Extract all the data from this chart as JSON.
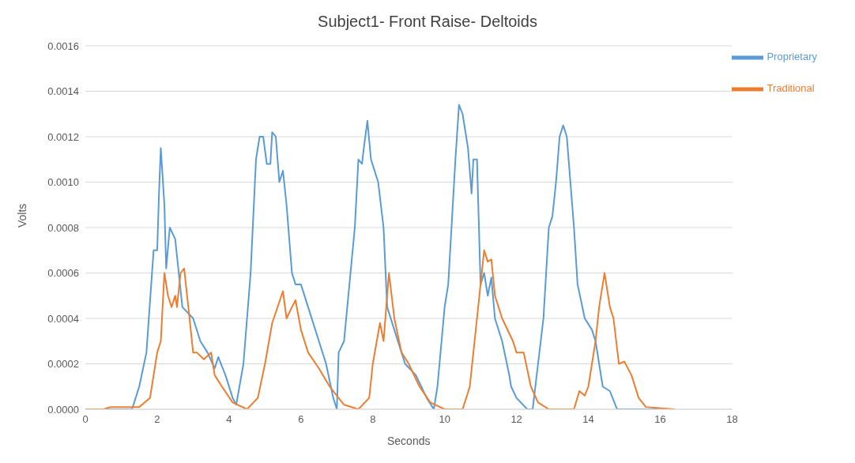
{
  "chart_data": {
    "type": "line",
    "title": "Subject1- Front Raise- Deltoids",
    "xlabel": "Seconds",
    "ylabel": "Volts",
    "xlim": [
      0,
      18
    ],
    "xticks": [
      0,
      2,
      4,
      6,
      8,
      10,
      12,
      14,
      16,
      18
    ],
    "ylim": [
      0,
      0.0016
    ],
    "yticks": [
      {
        "value": 0,
        "label": "0.0000"
      },
      {
        "value": 0.0002,
        "label": "0.0002"
      },
      {
        "value": 0.0004,
        "label": "0.0004"
      },
      {
        "value": 0.0006,
        "label": "0.0006"
      },
      {
        "value": 0.0008,
        "label": "0.0008"
      },
      {
        "value": 0.001,
        "label": "0.0010"
      },
      {
        "value": 0.0012,
        "label": "0.0012"
      },
      {
        "value": 0.0014,
        "label": "0.0014"
      },
      {
        "value": 0.0016,
        "label": "0.0016"
      }
    ],
    "grid": "y",
    "legend": "top right",
    "marker": "none",
    "line_style": "solid",
    "series": [
      {
        "name": "Proprietary",
        "color": "#5b9bd5",
        "x": [
          0,
          1.3,
          1.5,
          1.7,
          1.9,
          2.0,
          2.05,
          2.1,
          2.2,
          2.25,
          2.35,
          2.5,
          2.6,
          2.7,
          3.0,
          3.2,
          3.4,
          3.6,
          3.7,
          3.9,
          4.1,
          4.2,
          4.4,
          4.6,
          4.75,
          4.85,
          4.95,
          5.05,
          5.15,
          5.2,
          5.3,
          5.4,
          5.5,
          5.6,
          5.75,
          5.85,
          6.0,
          6.2,
          6.5,
          6.7,
          6.9,
          7.0,
          7.05,
          7.2,
          7.5,
          7.6,
          7.7,
          7.75,
          7.85,
          7.95,
          8.05,
          8.15,
          8.3,
          8.4,
          8.6,
          8.9,
          9.2,
          9.5,
          9.7,
          9.8,
          10.0,
          10.1,
          10.3,
          10.4,
          10.5,
          10.65,
          10.75,
          10.8,
          10.9,
          11.0,
          11.1,
          11.2,
          11.3,
          11.4,
          11.6,
          11.8,
          11.85,
          12.0,
          12.3,
          12.45,
          12.6,
          12.75,
          12.9,
          13.0,
          13.1,
          13.2,
          13.3,
          13.4,
          13.6,
          13.7,
          13.9,
          14.1,
          14.2,
          14.4,
          14.6,
          14.8,
          16.4
        ],
        "values": [
          0,
          0,
          0.0001,
          0.00025,
          0.0007,
          0.0007,
          0.00095,
          0.00115,
          0.0009,
          0.00062,
          0.0008,
          0.00075,
          0.0006,
          0.00045,
          0.0004,
          0.0003,
          0.00025,
          0.00018,
          0.00023,
          0.00015,
          5e-05,
          2e-05,
          0.0002,
          0.0006,
          0.0011,
          0.0012,
          0.0012,
          0.00108,
          0.00108,
          0.00122,
          0.0012,
          0.001,
          0.00105,
          0.0009,
          0.0006,
          0.00055,
          0.00055,
          0.00045,
          0.0003,
          0.0002,
          5e-05,
          0,
          0.00025,
          0.0003,
          0.0008,
          0.0011,
          0.00108,
          0.00115,
          0.00127,
          0.0011,
          0.00105,
          0.001,
          0.0008,
          0.00045,
          0.00035,
          0.0002,
          0.00015,
          5e-05,
          0,
          0.0001,
          0.00045,
          0.00055,
          0.0011,
          0.00134,
          0.0013,
          0.00115,
          0.00095,
          0.0011,
          0.0011,
          0.00055,
          0.0006,
          0.0005,
          0.00058,
          0.0004,
          0.0003,
          0.00015,
          0.0001,
          5e-05,
          0,
          0,
          0.0002,
          0.0004,
          0.0008,
          0.00085,
          0.001,
          0.0012,
          0.00125,
          0.0012,
          0.0008,
          0.00055,
          0.0004,
          0.00035,
          0.0003,
          0.0001,
          8e-05,
          0,
          0
        ]
      },
      {
        "name": "Traditional",
        "color": "#ed7d31",
        "x": [
          0,
          0.5,
          0.7,
          1.5,
          1.8,
          2.0,
          2.1,
          2.2,
          2.3,
          2.4,
          2.5,
          2.55,
          2.65,
          2.75,
          2.9,
          3.0,
          3.1,
          3.3,
          3.5,
          3.6,
          3.8,
          4.1,
          4.5,
          4.8,
          5.0,
          5.2,
          5.5,
          5.6,
          5.75,
          5.85,
          6.0,
          6.2,
          6.5,
          6.8,
          7.2,
          7.6,
          7.9,
          8.0,
          8.2,
          8.3,
          8.45,
          8.6,
          8.8,
          9.0,
          9.3,
          9.6,
          10.0,
          10.5,
          10.7,
          10.9,
          11.0,
          11.1,
          11.2,
          11.3,
          11.4,
          11.6,
          11.9,
          12.0,
          12.2,
          12.4,
          12.6,
          12.9,
          13.6,
          13.75,
          13.9,
          14.0,
          14.2,
          14.3,
          14.45,
          14.6,
          14.7,
          14.85,
          15.0,
          15.2,
          15.4,
          15.6,
          16.4
        ],
        "values": [
          0,
          0,
          1e-05,
          1e-05,
          5e-05,
          0.00025,
          0.0003,
          0.0006,
          0.0005,
          0.00045,
          0.0005,
          0.00045,
          0.0006,
          0.00062,
          0.0004,
          0.00025,
          0.00025,
          0.00022,
          0.00025,
          0.00015,
          0.0001,
          3e-05,
          0,
          5e-05,
          0.0002,
          0.00038,
          0.00052,
          0.0004,
          0.00045,
          0.00048,
          0.00035,
          0.00025,
          0.00018,
          0.0001,
          2e-05,
          0,
          5e-05,
          0.0002,
          0.00038,
          0.0003,
          0.0006,
          0.0004,
          0.00025,
          0.0002,
          0.0001,
          3e-05,
          0,
          0,
          0.0001,
          0.0004,
          0.00055,
          0.0007,
          0.00065,
          0.00066,
          0.0005,
          0.0004,
          0.0003,
          0.00025,
          0.00025,
          0.0001,
          3e-05,
          0,
          0,
          8e-05,
          6e-05,
          0.0001,
          0.0003,
          0.00045,
          0.0006,
          0.00045,
          0.0004,
          0.0002,
          0.00021,
          0.00015,
          5e-05,
          1e-05,
          0
        ]
      }
    ]
  }
}
